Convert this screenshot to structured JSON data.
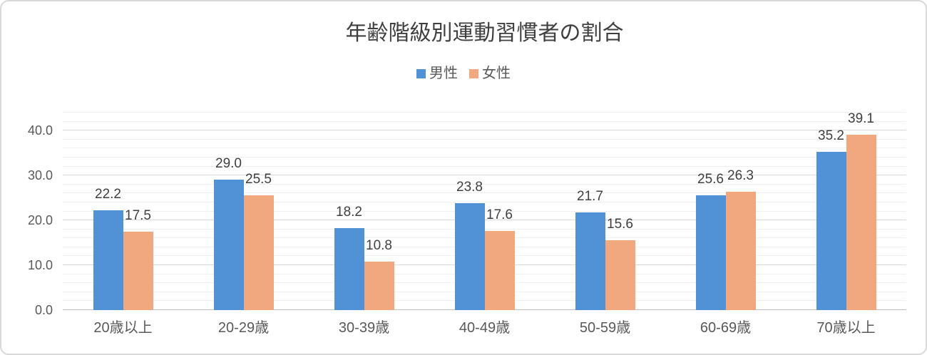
{
  "chart_data": {
    "type": "bar",
    "title": "年齢階級別運動習慣者の割合",
    "categories": [
      "20歳以上",
      "20-29歳",
      "30-39歳",
      "40-49歳",
      "50-59歳",
      "60-69歳",
      "70歳以上"
    ],
    "series": [
      {
        "name": "男性",
        "color": "#5191d6",
        "values": [
          22.2,
          29.0,
          18.2,
          23.8,
          21.7,
          25.6,
          35.2
        ]
      },
      {
        "name": "女性",
        "color": "#f1a87e",
        "values": [
          17.5,
          25.5,
          10.8,
          17.6,
          15.6,
          26.3,
          39.1
        ]
      }
    ],
    "xlabel": "",
    "ylabel": "",
    "ylim": [
      0,
      44
    ],
    "y_major_ticks": [
      {
        "value": 0,
        "label": "0.0"
      },
      {
        "value": 10,
        "label": "10.0"
      },
      {
        "value": 20,
        "label": "20.0"
      },
      {
        "value": 30,
        "label": "30.0"
      },
      {
        "value": 40,
        "label": "40.0"
      }
    ],
    "y_minor_unit": 2,
    "grid": "horizontal major and minor, on",
    "legend_position": "top-center",
    "data_labels": "outside-end, one decimal"
  },
  "colors": {
    "background": "#ffffff",
    "border": "#d9d9d9",
    "title_text": "#3f3f3f",
    "axis_text": "#595959",
    "data_label_text": "#3f3f3f",
    "gridline_major": "#d9d9d9",
    "gridline_minor": "#f0f0f0",
    "axis_baseline": "#bdbdbd",
    "male_series": "#5191d6",
    "female_series": "#f1a87e"
  }
}
